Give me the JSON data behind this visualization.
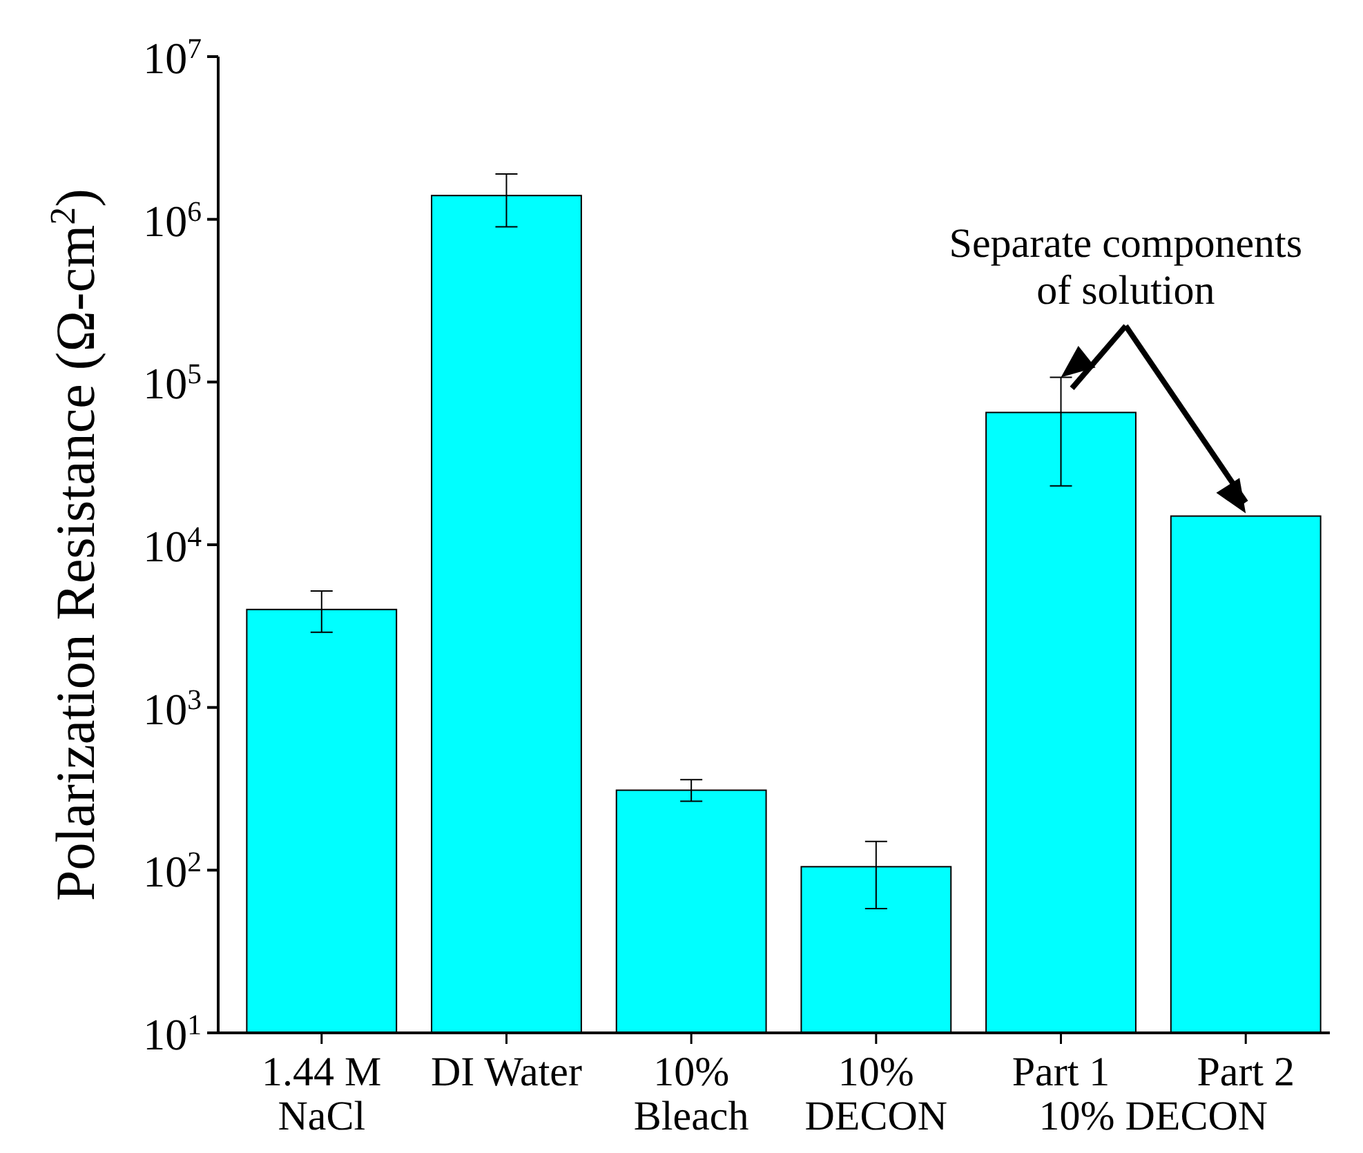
{
  "chart_data": {
    "type": "bar",
    "ylabel": "Polarization Resistance (Ω-cm$^{2}$)",
    "categories": [
      "1.44 M\nNaCl",
      "DI Water",
      "10%\nBleach",
      "10%\nDECON",
      "Part 1",
      "Part 2"
    ],
    "values": [
      4000,
      1400000,
      310,
      105,
      65000,
      15000
    ],
    "errors": [
      [
        2900,
        5200
      ],
      [
        900000,
        1900000
      ],
      [
        265,
        360
      ],
      [
        58,
        150
      ],
      [
        23000,
        107000
      ],
      null
    ],
    "color": "#00ffff",
    "log": "y",
    "ylim": [
      10,
      10000000
    ],
    "yticks": [
      {
        "value": 10,
        "label": "10$^{1}$"
      },
      {
        "value": 100,
        "label": "10$^{2}$"
      },
      {
        "value": 1000,
        "label": "10$^{3}$"
      },
      {
        "value": 10000,
        "label": "10$^{4}$"
      },
      {
        "value": 100000,
        "label": "10$^{5}$"
      },
      {
        "value": 1000000,
        "label": "10$^{6}$"
      },
      {
        "value": 10000000,
        "label": "10$^{7}$"
      }
    ],
    "annotations": [
      "Separate components of solution",
      "10% DECON"
    ]
  }
}
